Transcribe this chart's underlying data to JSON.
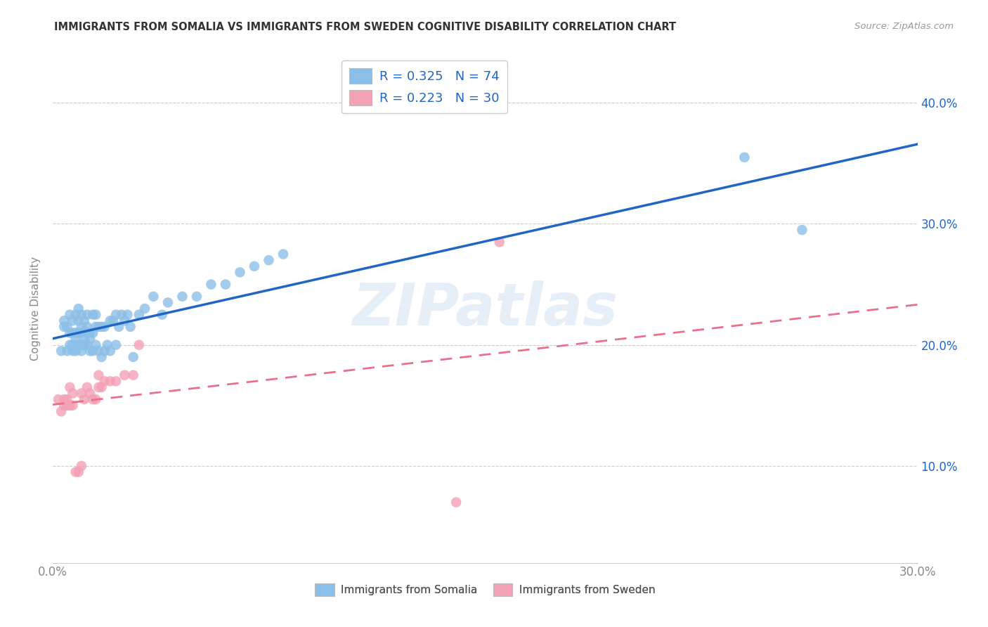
{
  "title": "IMMIGRANTS FROM SOMALIA VS IMMIGRANTS FROM SWEDEN COGNITIVE DISABILITY CORRELATION CHART",
  "source": "Source: ZipAtlas.com",
  "ylabel": "Cognitive Disability",
  "x_min": 0.0,
  "x_max": 0.3,
  "y_min": 0.02,
  "y_max": 0.44,
  "somalia_R": 0.325,
  "somalia_N": 74,
  "sweden_R": 0.223,
  "sweden_N": 30,
  "somalia_color": "#8bbfe8",
  "sweden_color": "#f4a0b5",
  "somalia_line_color": "#2166c4",
  "sweden_line_color": "#e8708a",
  "watermark": "ZIPatlas",
  "somalia_x": [
    0.003,
    0.004,
    0.004,
    0.005,
    0.005,
    0.006,
    0.006,
    0.006,
    0.007,
    0.007,
    0.007,
    0.007,
    0.008,
    0.008,
    0.008,
    0.008,
    0.009,
    0.009,
    0.009,
    0.009,
    0.01,
    0.01,
    0.01,
    0.01,
    0.01,
    0.011,
    0.011,
    0.011,
    0.012,
    0.012,
    0.012,
    0.012,
    0.013,
    0.013,
    0.013,
    0.014,
    0.014,
    0.014,
    0.015,
    0.015,
    0.015,
    0.016,
    0.016,
    0.017,
    0.017,
    0.018,
    0.018,
    0.019,
    0.02,
    0.02,
    0.021,
    0.022,
    0.022,
    0.023,
    0.024,
    0.025,
    0.026,
    0.027,
    0.028,
    0.03,
    0.032,
    0.035,
    0.038,
    0.04,
    0.045,
    0.05,
    0.055,
    0.06,
    0.065,
    0.07,
    0.075,
    0.08,
    0.24,
    0.26
  ],
  "somalia_y": [
    0.195,
    0.215,
    0.22,
    0.195,
    0.215,
    0.2,
    0.21,
    0.225,
    0.195,
    0.2,
    0.21,
    0.22,
    0.195,
    0.205,
    0.21,
    0.225,
    0.2,
    0.21,
    0.22,
    0.23,
    0.195,
    0.2,
    0.21,
    0.215,
    0.225,
    0.2,
    0.205,
    0.22,
    0.2,
    0.21,
    0.215,
    0.225,
    0.195,
    0.205,
    0.21,
    0.195,
    0.21,
    0.225,
    0.2,
    0.215,
    0.225,
    0.195,
    0.215,
    0.19,
    0.215,
    0.195,
    0.215,
    0.2,
    0.195,
    0.22,
    0.22,
    0.2,
    0.225,
    0.215,
    0.225,
    0.22,
    0.225,
    0.215,
    0.19,
    0.225,
    0.23,
    0.24,
    0.225,
    0.235,
    0.24,
    0.24,
    0.25,
    0.25,
    0.26,
    0.265,
    0.27,
    0.275,
    0.355,
    0.295
  ],
  "sweden_x": [
    0.002,
    0.003,
    0.004,
    0.004,
    0.005,
    0.005,
    0.006,
    0.006,
    0.007,
    0.007,
    0.008,
    0.009,
    0.01,
    0.01,
    0.011,
    0.012,
    0.013,
    0.014,
    0.015,
    0.016,
    0.016,
    0.017,
    0.018,
    0.02,
    0.022,
    0.025,
    0.028,
    0.03,
    0.14,
    0.155
  ],
  "sweden_y": [
    0.155,
    0.145,
    0.15,
    0.155,
    0.15,
    0.155,
    0.15,
    0.165,
    0.15,
    0.16,
    0.095,
    0.095,
    0.1,
    0.16,
    0.155,
    0.165,
    0.16,
    0.155,
    0.155,
    0.165,
    0.175,
    0.165,
    0.17,
    0.17,
    0.17,
    0.175,
    0.175,
    0.2,
    0.07,
    0.285
  ],
  "right_y_ticks": [
    0.1,
    0.2,
    0.3,
    0.4
  ],
  "x_ticks": [
    0.0,
    0.05,
    0.1,
    0.15,
    0.2,
    0.25,
    0.3
  ]
}
